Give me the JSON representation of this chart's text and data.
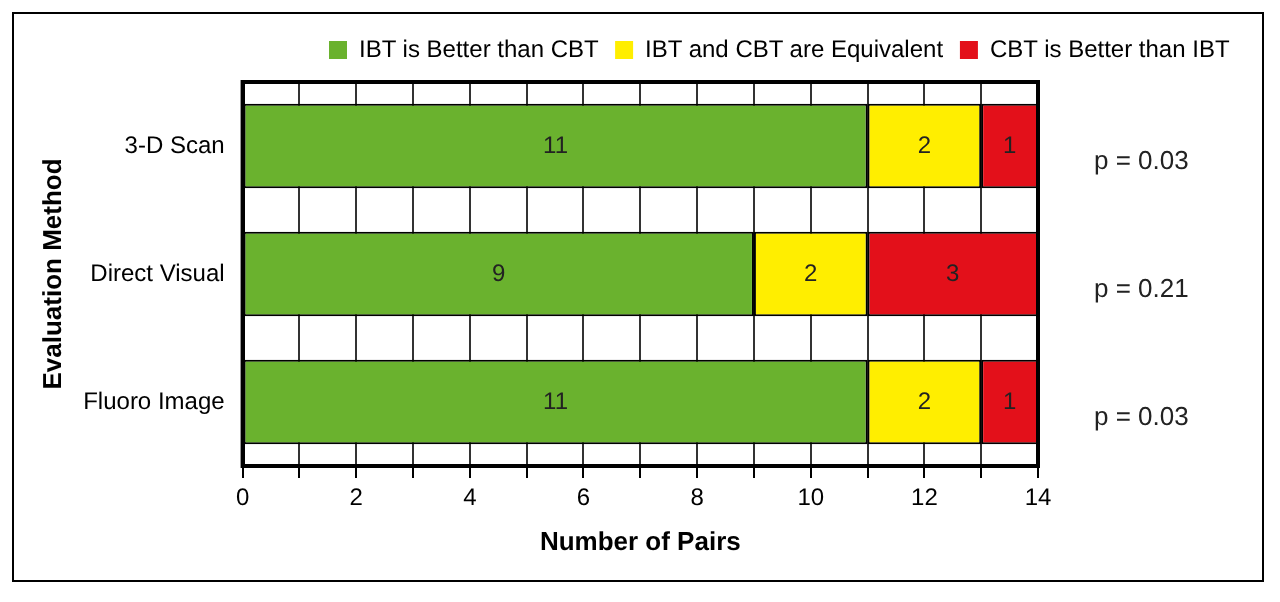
{
  "chart_data": {
    "type": "bar",
    "orientation": "horizontal",
    "stacked": true,
    "categories": [
      "3-D Scan",
      "Direct Visual",
      "Fluoro Image"
    ],
    "series": [
      {
        "name": "IBT is Better than CBT",
        "color": "#6ab22e",
        "values": [
          11,
          9,
          11
        ]
      },
      {
        "name": "IBT and CBT are Equivalent",
        "color": "#ffee00",
        "values": [
          2,
          2,
          2
        ]
      },
      {
        "name": "CBT is Better than IBT",
        "color": "#e3101a",
        "values": [
          1,
          3,
          1
        ]
      }
    ],
    "xlim": [
      0,
      14
    ],
    "xticks": [
      0,
      {
        "value": 1,
        "label": null
      },
      2,
      {
        "value": 3,
        "label": null
      },
      4,
      {
        "value": 5,
        "label": null
      },
      6,
      {
        "value": 7,
        "label": null
      },
      8,
      {
        "value": 9,
        "label": null
      },
      10,
      {
        "value": 11,
        "label": null
      },
      12,
      {
        "value": 13,
        "label": null
      },
      14
    ],
    "xlabel": "Number of Pairs",
    "ylabel": "Evaluation Method",
    "annotations": [
      "p = 0.03",
      "p = 0.21",
      "p = 0.03"
    ],
    "data_labels": true,
    "grid": "x",
    "legend": "top right"
  }
}
